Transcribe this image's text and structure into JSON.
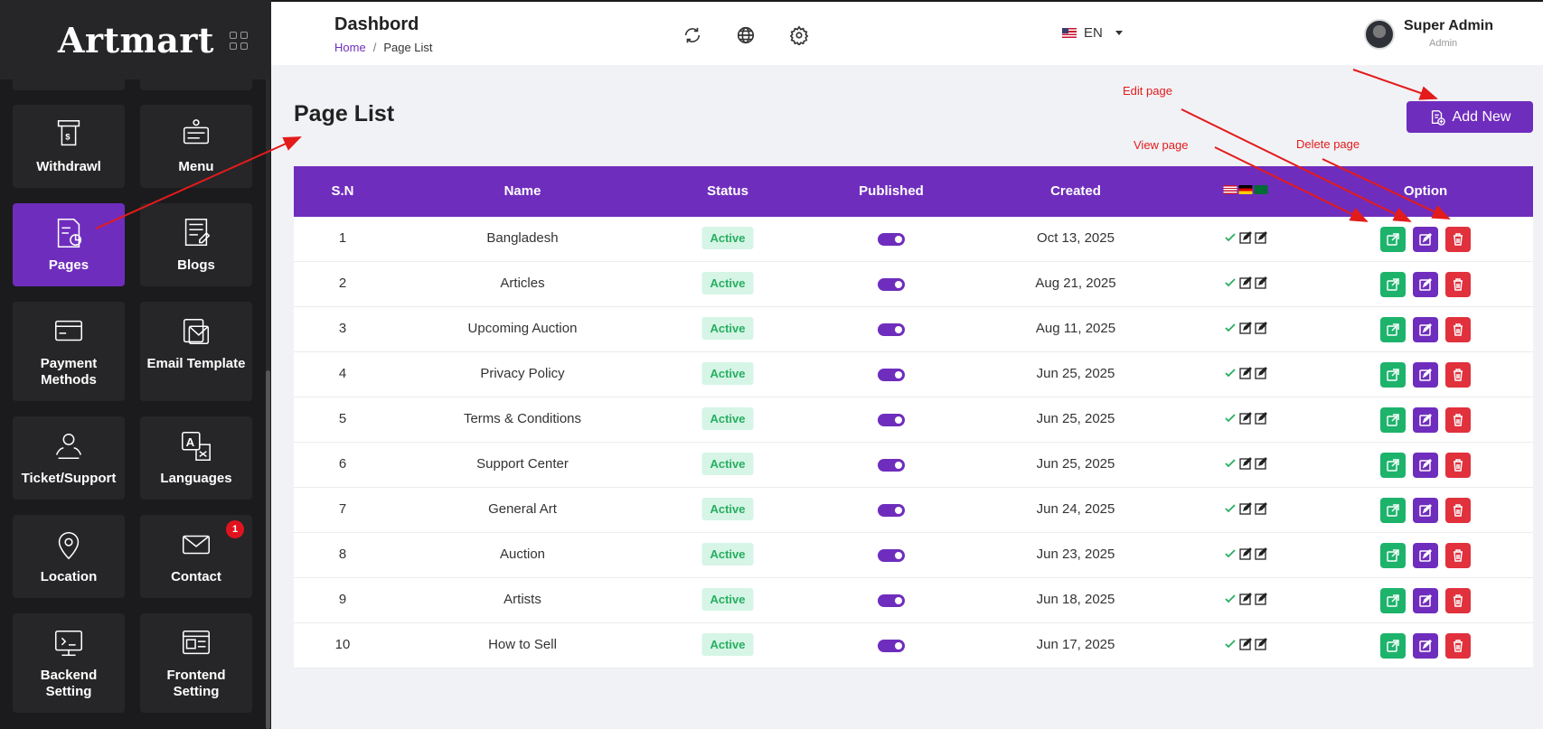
{
  "sidebar": {
    "logo": "Artmart",
    "tiles": [
      {
        "label": "Withdrawl",
        "icon": "atm-icon"
      },
      {
        "label": "Menu",
        "icon": "menu-icon"
      },
      {
        "label": "Pages",
        "icon": "pages-icon",
        "active": true
      },
      {
        "label": "Blogs",
        "icon": "blog-icon"
      },
      {
        "label": "Payment Methods",
        "icon": "payment-card-icon"
      },
      {
        "label": "Email Template",
        "icon": "email-template-icon"
      },
      {
        "label": "Ticket/Support",
        "icon": "support-icon"
      },
      {
        "label": "Languages",
        "icon": "translate-icon"
      },
      {
        "label": "Location",
        "icon": "location-pin-icon"
      },
      {
        "label": "Contact",
        "icon": "envelope-icon",
        "badge": "1"
      },
      {
        "label": "Backend Setting",
        "icon": "backend-icon"
      },
      {
        "label": "Frontend Setting",
        "icon": "frontend-icon"
      }
    ]
  },
  "header": {
    "title": "Dashbord",
    "breadcrumb": {
      "home": "Home",
      "separator": "/",
      "current": "Page List"
    },
    "language": "EN",
    "user": {
      "name": "Super Admin",
      "role": "Admin"
    }
  },
  "main": {
    "title": "Page List",
    "add_button": "Add New"
  },
  "table": {
    "headers": {
      "sn": "S.N",
      "name": "Name",
      "status": "Status",
      "published": "Published",
      "created": "Created",
      "option": "Option"
    },
    "rows": [
      {
        "sn": "1",
        "name": "Bangladesh",
        "status": "Active",
        "published": true,
        "created": "Oct 13, 2025"
      },
      {
        "sn": "2",
        "name": "Articles",
        "status": "Active",
        "published": true,
        "created": "Aug 21, 2025"
      },
      {
        "sn": "3",
        "name": "Upcoming Auction",
        "status": "Active",
        "published": true,
        "created": "Aug 11, 2025"
      },
      {
        "sn": "4",
        "name": "Privacy Policy",
        "status": "Active",
        "published": true,
        "created": "Jun 25, 2025"
      },
      {
        "sn": "5",
        "name": "Terms & Conditions",
        "status": "Active",
        "published": true,
        "created": "Jun 25, 2025"
      },
      {
        "sn": "6",
        "name": "Support Center",
        "status": "Active",
        "published": true,
        "created": "Jun 25, 2025"
      },
      {
        "sn": "7",
        "name": "General Art",
        "status": "Active",
        "published": true,
        "created": "Jun 24, 2025"
      },
      {
        "sn": "8",
        "name": "Auction",
        "status": "Active",
        "published": true,
        "created": "Jun 23, 2025"
      },
      {
        "sn": "9",
        "name": "Artists",
        "status": "Active",
        "published": true,
        "created": "Jun 18, 2025"
      },
      {
        "sn": "10",
        "name": "How to Sell",
        "status": "Active",
        "published": true,
        "created": "Jun 17, 2025"
      }
    ]
  },
  "annotations": {
    "edit": "Edit page",
    "view": "View page",
    "delete": "Delete page"
  },
  "colors": {
    "accent": "#6f2dbd",
    "sidebar_bg": "#1b1b1d",
    "view": "#1db36b",
    "delete": "#e0313d",
    "annotation": "#e31b1b"
  }
}
